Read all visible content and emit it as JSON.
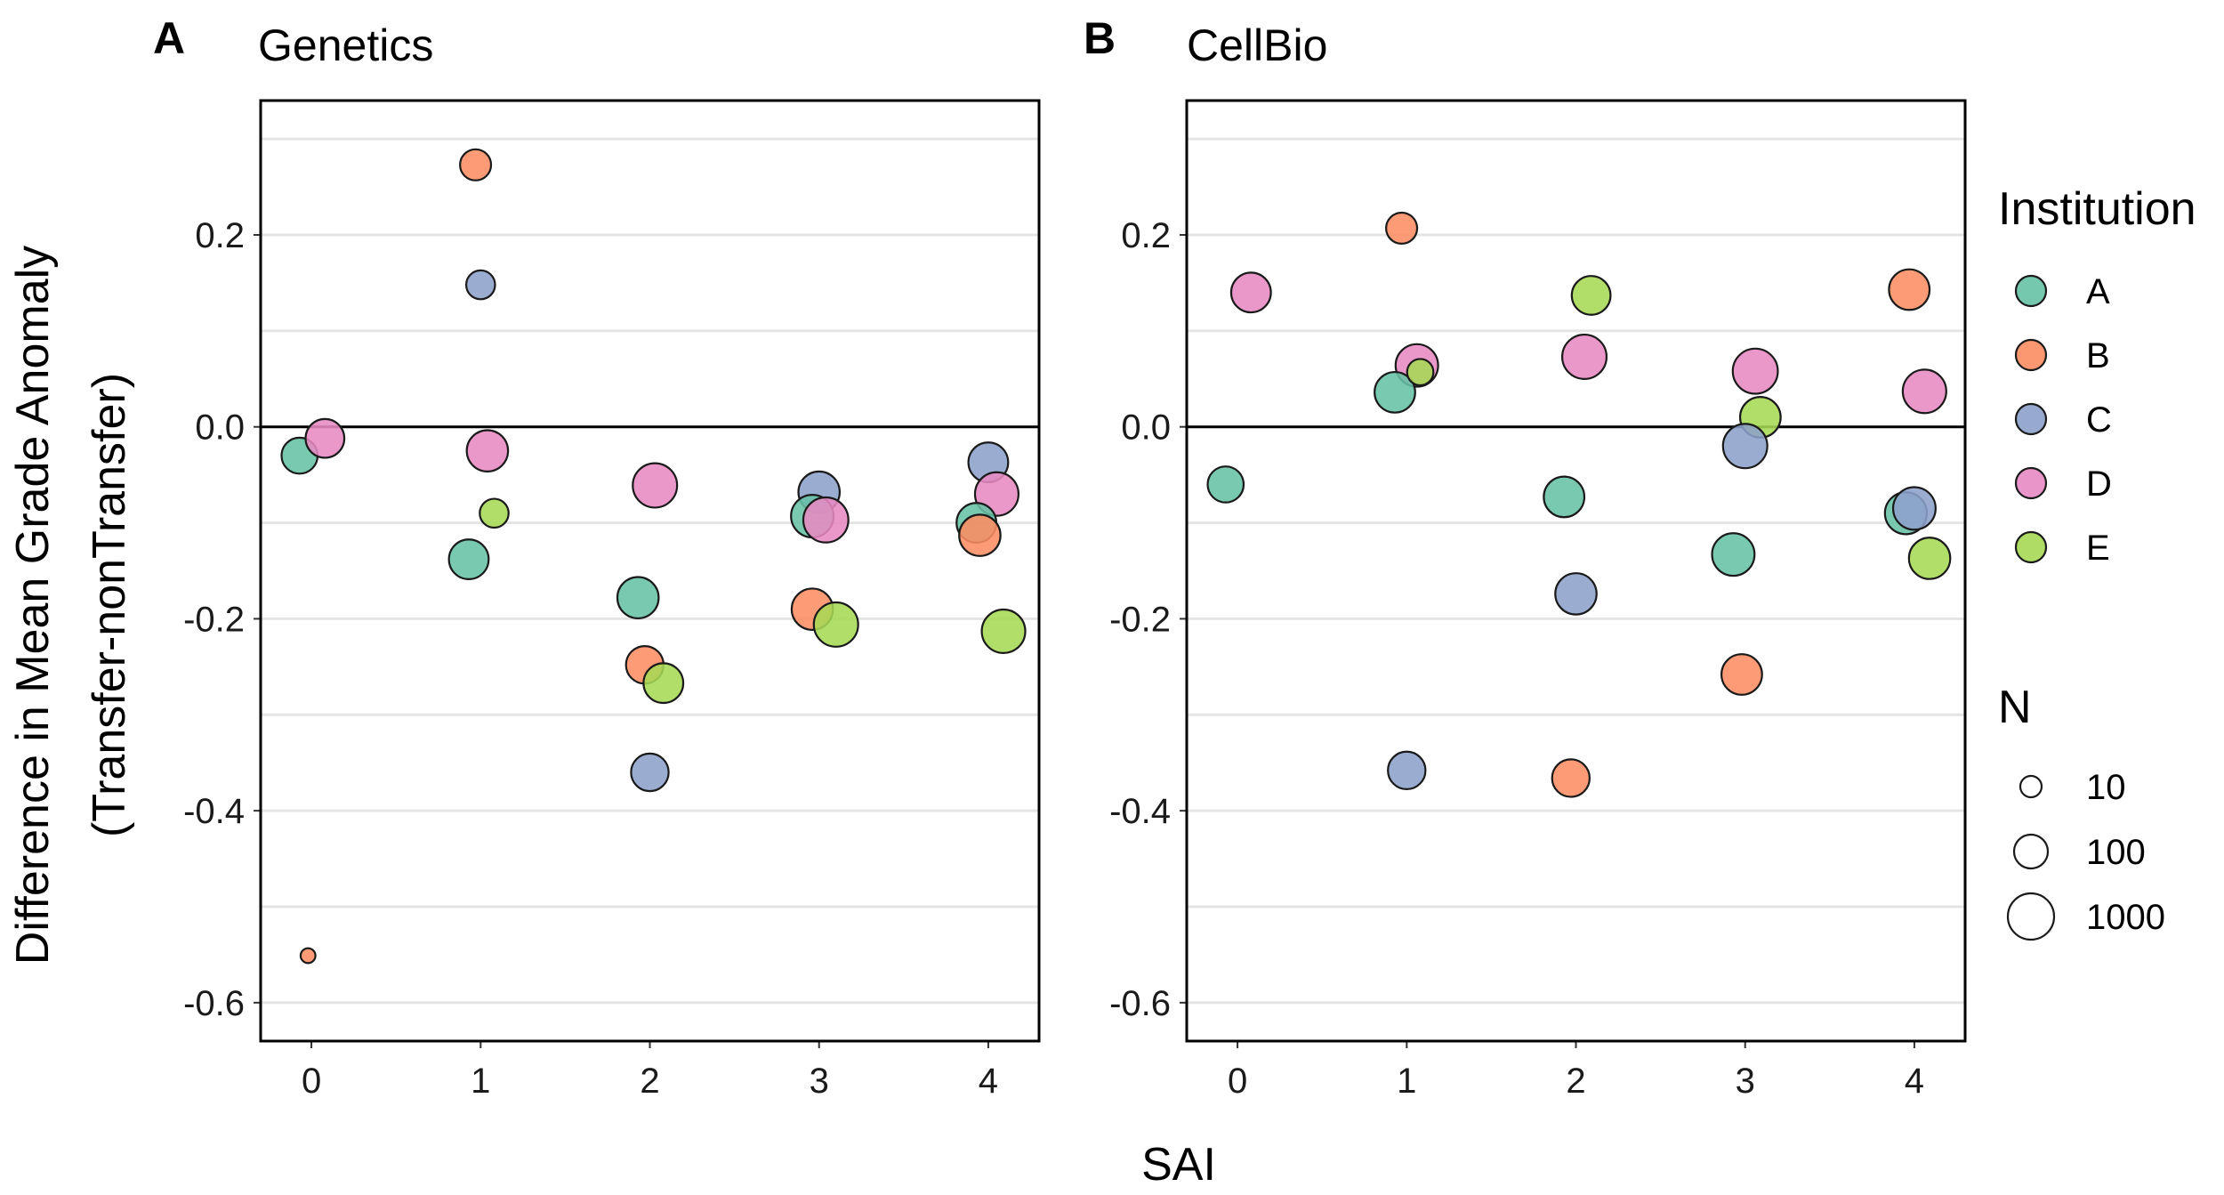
{
  "chart_data": [
    {
      "type": "scatter",
      "panel_label": "A",
      "title": "Genetics",
      "xlabel": "SAI",
      "ylabel": "Difference in Mean Grade Anomaly",
      "ylabel2": "(Transfer-nonTransfer)",
      "x_ticks": [
        "0",
        "1",
        "2",
        "3",
        "4"
      ],
      "y_ticks": [
        "0.2",
        "0.0",
        "-0.2",
        "-0.4",
        "-0.6"
      ],
      "ylim": [
        -0.64,
        0.34
      ],
      "xlim": [
        -0.3,
        4.3
      ],
      "points": [
        {
          "x": -0.07,
          "y": -0.03,
          "inst": "A",
          "n": 150
        },
        {
          "x": 0.08,
          "y": -0.012,
          "inst": "D",
          "n": 250
        },
        {
          "x": -0.02,
          "y": -0.551,
          "inst": "B",
          "n": 3
        },
        {
          "x": 0.97,
          "y": 0.273,
          "inst": "B",
          "n": 60
        },
        {
          "x": 1.0,
          "y": 0.148,
          "inst": "C",
          "n": 40
        },
        {
          "x": 1.04,
          "y": -0.025,
          "inst": "D",
          "n": 400
        },
        {
          "x": 1.08,
          "y": -0.09,
          "inst": "E",
          "n": 40
        },
        {
          "x": 0.93,
          "y": -0.138,
          "inst": "A",
          "n": 300
        },
        {
          "x": 2.03,
          "y": -0.061,
          "inst": "D",
          "n": 700
        },
        {
          "x": 1.93,
          "y": -0.178,
          "inst": "A",
          "n": 400
        },
        {
          "x": 1.97,
          "y": -0.248,
          "inst": "B",
          "n": 200
        },
        {
          "x": 2.08,
          "y": -0.267,
          "inst": "E",
          "n": 300
        },
        {
          "x": 2.0,
          "y": -0.36,
          "inst": "C",
          "n": 200
        },
        {
          "x": 3.0,
          "y": -0.068,
          "inst": "C",
          "n": 400
        },
        {
          "x": 2.96,
          "y": -0.093,
          "inst": "A",
          "n": 500
        },
        {
          "x": 3.04,
          "y": -0.097,
          "inst": "D",
          "n": 800
        },
        {
          "x": 2.96,
          "y": -0.19,
          "inst": "B",
          "n": 400
        },
        {
          "x": 3.1,
          "y": -0.206,
          "inst": "E",
          "n": 700
        },
        {
          "x": 4.0,
          "y": -0.037,
          "inst": "C",
          "n": 300
        },
        {
          "x": 4.05,
          "y": -0.07,
          "inst": "D",
          "n": 600
        },
        {
          "x": 3.93,
          "y": -0.1,
          "inst": "A",
          "n": 300
        },
        {
          "x": 3.95,
          "y": -0.113,
          "inst": "B",
          "n": 400
        },
        {
          "x": 4.09,
          "y": -0.213,
          "inst": "E",
          "n": 600
        }
      ]
    },
    {
      "type": "scatter",
      "panel_label": "B",
      "title": "CellBio",
      "xlabel": "SAI",
      "x_ticks": [
        "0",
        "1",
        "2",
        "3",
        "4"
      ],
      "y_ticks": [
        "0.2",
        "0.0",
        "-0.2",
        "-0.4",
        "-0.6"
      ],
      "ylim": [
        -0.64,
        0.34
      ],
      "xlim": [
        -0.3,
        4.3
      ],
      "points": [
        {
          "x": 0.08,
          "y": 0.14,
          "inst": "D",
          "n": 300
        },
        {
          "x": -0.07,
          "y": -0.06,
          "inst": "A",
          "n": 150
        },
        {
          "x": 0.97,
          "y": 0.207,
          "inst": "B",
          "n": 60
        },
        {
          "x": 1.06,
          "y": 0.064,
          "inst": "D",
          "n": 500
        },
        {
          "x": 0.93,
          "y": 0.036,
          "inst": "A",
          "n": 350
        },
        {
          "x": 1.08,
          "y": 0.057,
          "inst": "E",
          "n": 25
        },
        {
          "x": 1.0,
          "y": -0.358,
          "inst": "C",
          "n": 200
        },
        {
          "x": 2.09,
          "y": 0.137,
          "inst": "E",
          "n": 250
        },
        {
          "x": 2.05,
          "y": 0.073,
          "inst": "D",
          "n": 700
        },
        {
          "x": 1.93,
          "y": -0.073,
          "inst": "A",
          "n": 350
        },
        {
          "x": 2.0,
          "y": -0.174,
          "inst": "C",
          "n": 400
        },
        {
          "x": 1.97,
          "y": -0.366,
          "inst": "B",
          "n": 200
        },
        {
          "x": 3.06,
          "y": 0.058,
          "inst": "D",
          "n": 800
        },
        {
          "x": 3.09,
          "y": 0.01,
          "inst": "E",
          "n": 350
        },
        {
          "x": 3.0,
          "y": -0.02,
          "inst": "C",
          "n": 700
        },
        {
          "x": 2.93,
          "y": -0.133,
          "inst": "A",
          "n": 500
        },
        {
          "x": 2.98,
          "y": -0.258,
          "inst": "B",
          "n": 350
        },
        {
          "x": 3.97,
          "y": 0.143,
          "inst": "B",
          "n": 350
        },
        {
          "x": 4.06,
          "y": 0.037,
          "inst": "D",
          "n": 600
        },
        {
          "x": 3.95,
          "y": -0.09,
          "inst": "A",
          "n": 450
        },
        {
          "x": 4.0,
          "y": -0.085,
          "inst": "C",
          "n": 500
        },
        {
          "x": 4.09,
          "y": -0.137,
          "inst": "E",
          "n": 400
        }
      ]
    }
  ],
  "legend": {
    "institution_title": "Institution",
    "institutions": [
      {
        "key": "A",
        "label": "A",
        "color": "#66C2A5"
      },
      {
        "key": "B",
        "label": "B",
        "color": "#FC8D62"
      },
      {
        "key": "C",
        "label": "C",
        "color": "#8DA0CB"
      },
      {
        "key": "D",
        "label": "D",
        "color": "#E78AC3"
      },
      {
        "key": "E",
        "label": "E",
        "color": "#A6D854"
      }
    ],
    "n_title": "N",
    "n_sizes": [
      {
        "label": "10",
        "n": 10
      },
      {
        "label": "100",
        "n": 100
      },
      {
        "label": "1000",
        "n": 1000
      }
    ]
  }
}
